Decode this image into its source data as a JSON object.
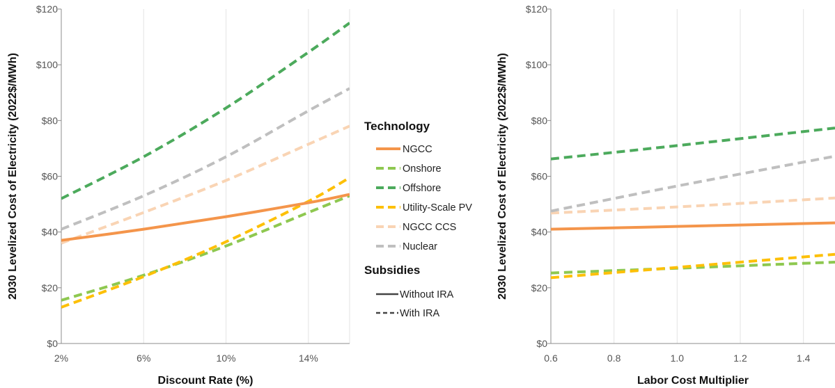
{
  "chart_data": [
    {
      "type": "line",
      "xlabel": "Discount Rate (%)",
      "ylabel": "2030 Levelized Cost of Electricity (2022$/MWh)",
      "xlim": [
        2,
        16
      ],
      "ylim": [
        0,
        120
      ],
      "x_ticks": [
        2,
        6,
        10,
        14
      ],
      "x_tick_labels": [
        "2%",
        "6%",
        "10%",
        "14%"
      ],
      "y_ticks": [
        0,
        20,
        40,
        60,
        80,
        100,
        120
      ],
      "y_tick_labels": [
        "$0",
        "$20",
        "$40",
        "$60",
        "$80",
        "$100",
        "$120"
      ],
      "grid": "vertical",
      "x": [
        2,
        6,
        10,
        14,
        16
      ],
      "series": [
        {
          "name": "NGCC",
          "subsidy": "Without IRA",
          "color": "#f4954b",
          "values": [
            37,
            41,
            45.5,
            50.5,
            53.5
          ]
        },
        {
          "name": "Onshore",
          "subsidy": "With IRA",
          "color": "#8ec850",
          "values": [
            15.5,
            24.5,
            35,
            47,
            53
          ]
        },
        {
          "name": "Offshore",
          "subsidy": "With IRA",
          "color": "#4caa5c",
          "values": [
            52,
            67,
            84.5,
            104.5,
            115
          ]
        },
        {
          "name": "Utility-Scale PV",
          "subsidy": "With IRA",
          "color": "#fdc008",
          "values": [
            13,
            24,
            36.5,
            51,
            59.5
          ]
        },
        {
          "name": "NGCC CCS",
          "subsidy": "With IRA",
          "color": "#f9d4b4",
          "values": [
            36,
            47,
            58.5,
            71.5,
            78
          ]
        },
        {
          "name": "Nuclear",
          "subsidy": "With IRA",
          "color": "#bfbfbf",
          "values": [
            41,
            53,
            67,
            83.5,
            91.5
          ]
        }
      ]
    },
    {
      "type": "line",
      "xlabel": "Labor Cost Multiplier",
      "ylabel": "2030 Levelized Cost of Electricity (2022$/MWh)",
      "xlim": [
        0.6,
        1.5
      ],
      "ylim": [
        0,
        120
      ],
      "x_ticks": [
        0.6,
        0.8,
        1.0,
        1.2,
        1.4
      ],
      "x_tick_labels": [
        "0.6",
        "0.8",
        "1.0",
        "1.2",
        "1.4"
      ],
      "y_ticks": [
        0,
        20,
        40,
        60,
        80,
        100,
        120
      ],
      "y_tick_labels": [
        "$0",
        "$20",
        "$40",
        "$60",
        "$80",
        "$100",
        "$120"
      ],
      "grid": "vertical",
      "x": [
        0.6,
        1.0,
        1.5
      ],
      "series": [
        {
          "name": "NGCC",
          "subsidy": "Without IRA",
          "color": "#f4954b",
          "values": [
            41,
            42,
            43.3
          ]
        },
        {
          "name": "Onshore",
          "subsidy": "With IRA",
          "color": "#8ec850",
          "values": [
            25.3,
            27,
            29.2
          ]
        },
        {
          "name": "Offshore",
          "subsidy": "With IRA",
          "color": "#4caa5c",
          "values": [
            66.2,
            71,
            77.3
          ]
        },
        {
          "name": "Utility-Scale PV",
          "subsidy": "With IRA",
          "color": "#fdc008",
          "values": [
            23.6,
            27.3,
            32
          ]
        },
        {
          "name": "NGCC CCS",
          "subsidy": "With IRA",
          "color": "#f9d4b4",
          "values": [
            46.8,
            49,
            52.2
          ]
        },
        {
          "name": "Nuclear",
          "subsidy": "With IRA",
          "color": "#bfbfbf",
          "values": [
            47.5,
            56.5,
            67.2
          ]
        }
      ]
    }
  ],
  "legend": {
    "placement": "between panels",
    "technology_title": "Technology",
    "technology_items": [
      {
        "label": "NGCC",
        "color": "#f4954b",
        "style": "solid"
      },
      {
        "label": "Onshore",
        "color": "#8ec850",
        "style": "dashed"
      },
      {
        "label": "Offshore",
        "color": "#4caa5c",
        "style": "dashed"
      },
      {
        "label": "Utility-Scale PV",
        "color": "#fdc008",
        "style": "dashed"
      },
      {
        "label": "NGCC CCS",
        "color": "#f9d4b4",
        "style": "dashed"
      },
      {
        "label": "Nuclear",
        "color": "#bfbfbf",
        "style": "dashed"
      }
    ],
    "subsidies_title": "Subsidies",
    "subsidies_items": [
      {
        "label": "Without IRA",
        "color": "#444444",
        "style": "solid"
      },
      {
        "label": "With IRA",
        "color": "#444444",
        "style": "dashed"
      }
    ]
  },
  "colors": {
    "grid": "#e3e3e3",
    "axis": "#8c8c8c"
  }
}
